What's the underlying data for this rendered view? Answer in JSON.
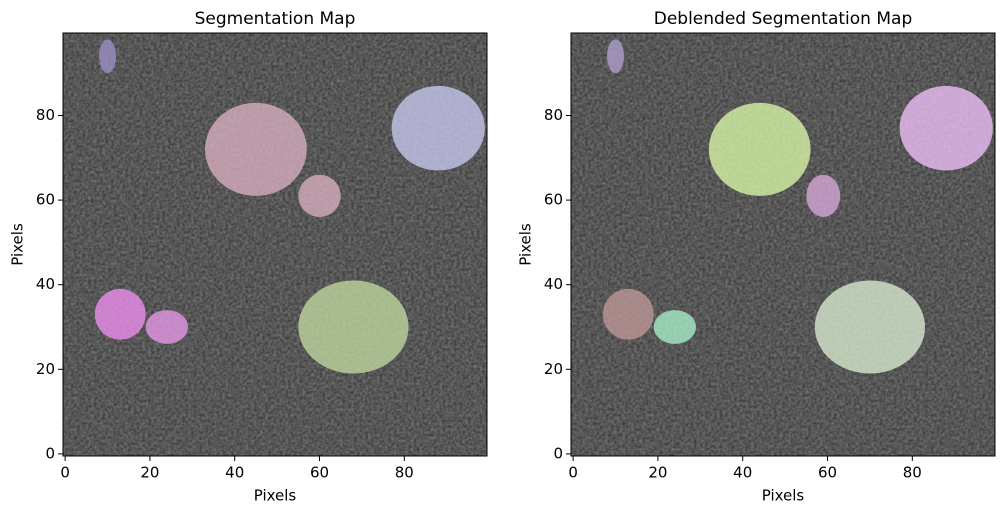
{
  "chart_data": [
    {
      "type": "image",
      "title": "Segmentation Map",
      "xlabel": "Pixels",
      "ylabel": "Pixels",
      "xlim": [
        -0.5,
        99.5
      ],
      "ylim": [
        -0.5,
        99.5
      ],
      "xticks": [
        0,
        20,
        40,
        60,
        80
      ],
      "yticks": [
        0,
        20,
        40,
        60,
        80
      ],
      "segments": [
        {
          "x": 10,
          "y": 94,
          "rx": 2,
          "ry": 4,
          "color": "#a090c8"
        },
        {
          "x": 45,
          "y": 72,
          "rx": 12,
          "ry": 11,
          "color": "#d8b0c0"
        },
        {
          "x": 60,
          "y": 61,
          "rx": 5,
          "ry": 5,
          "color": "#d8b0c0"
        },
        {
          "x": 88,
          "y": 77,
          "rx": 11,
          "ry": 10,
          "color": "#c8c8f0"
        },
        {
          "x": 13,
          "y": 33,
          "rx": 6,
          "ry": 6,
          "color": "#f090f0"
        },
        {
          "x": 24,
          "y": 30,
          "rx": 5,
          "ry": 4,
          "color": "#e898e8"
        },
        {
          "x": 68,
          "y": 30,
          "rx": 13,
          "ry": 11,
          "color": "#c0d8a0"
        }
      ]
    },
    {
      "type": "image",
      "title": "Deblended Segmentation Map",
      "xlabel": "Pixels",
      "ylabel": "Pixels",
      "xlim": [
        -0.5,
        99.5
      ],
      "ylim": [
        -0.5,
        99.5
      ],
      "xticks": [
        0,
        20,
        40,
        60,
        80
      ],
      "yticks": [
        0,
        20,
        40,
        60,
        80
      ],
      "segments": [
        {
          "x": 10,
          "y": 94,
          "rx": 2,
          "ry": 4,
          "color": "#b0a0d0"
        },
        {
          "x": 44,
          "y": 72,
          "rx": 12,
          "ry": 11,
          "color": "#d8f8a8"
        },
        {
          "x": 59,
          "y": 61,
          "rx": 4,
          "ry": 5,
          "color": "#d8a8d8"
        },
        {
          "x": 88,
          "y": 77,
          "rx": 11,
          "ry": 10,
          "color": "#f0c0f8"
        },
        {
          "x": 13,
          "y": 33,
          "rx": 6,
          "ry": 6,
          "color": "#c09898"
        },
        {
          "x": 24,
          "y": 30,
          "rx": 5,
          "ry": 4,
          "color": "#a8f0c8"
        },
        {
          "x": 70,
          "y": 30,
          "rx": 13,
          "ry": 11,
          "color": "#d8ecd0"
        }
      ]
    }
  ]
}
